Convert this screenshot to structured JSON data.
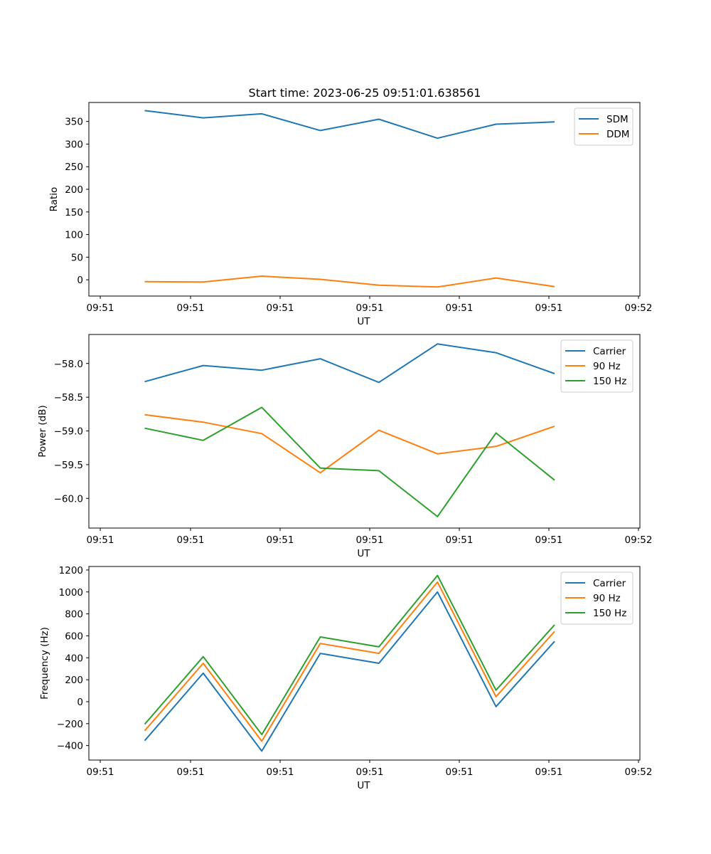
{
  "figure": {
    "title": "Start time: 2023-06-25 09:51:01.638561"
  },
  "chart_data": [
    {
      "type": "line",
      "title": "Start time: 2023-06-25 09:51:01.638561",
      "xlabel": "UT",
      "ylabel": "Ratio",
      "x_ticks": [
        "09:51",
        "09:51",
        "09:51",
        "09:51",
        "09:51",
        "09:51",
        "09:52"
      ],
      "y_ticks": [
        "0",
        "50",
        "100",
        "150",
        "200",
        "250",
        "300",
        "350"
      ],
      "ylim": [
        -36,
        392
      ],
      "x_index": [
        0,
        1,
        2,
        3,
        4,
        5,
        6,
        7
      ],
      "series": [
        {
          "name": "SDM",
          "color": "#1f77b4",
          "values": [
            374,
            358,
            367,
            330,
            355,
            313,
            344,
            349
          ]
        },
        {
          "name": "DDM",
          "color": "#ff7f0e",
          "values": [
            -4,
            -5,
            8,
            1,
            -12,
            -16,
            4,
            -15
          ]
        }
      ],
      "legend": "top-right",
      "grid": false
    },
    {
      "type": "line",
      "title": "",
      "xlabel": "UT",
      "ylabel": "Power (dB)",
      "x_ticks": [
        "09:51",
        "09:51",
        "09:51",
        "09:51",
        "09:51",
        "09:51",
        "09:52"
      ],
      "y_ticks": [
        "−60.0",
        "−59.5",
        "−59.0",
        "−58.5",
        "−58.0"
      ],
      "ylim": [
        -60.44,
        -57.57
      ],
      "x_index": [
        0,
        1,
        2,
        3,
        4,
        5,
        6,
        7
      ],
      "series": [
        {
          "name": "Carrier",
          "color": "#1f77b4",
          "values": [
            -58.27,
            -58.03,
            -58.1,
            -57.93,
            -58.28,
            -57.71,
            -57.84,
            -58.15
          ]
        },
        {
          "name": "90 Hz",
          "color": "#ff7f0e",
          "values": [
            -58.76,
            -58.87,
            -59.04,
            -59.62,
            -58.99,
            -59.34,
            -59.23,
            -58.93
          ]
        },
        {
          "name": "150 Hz",
          "color": "#2ca02c",
          "values": [
            -58.96,
            -59.14,
            -58.65,
            -59.55,
            -59.59,
            -60.27,
            -59.03,
            -59.73
          ]
        }
      ],
      "legend": "top-right",
      "grid": false
    },
    {
      "type": "line",
      "title": "",
      "xlabel": "UT",
      "ylabel": "Frequency (Hz)",
      "x_ticks": [
        "09:51",
        "09:51",
        "09:51",
        "09:51",
        "09:51",
        "09:51",
        "09:52"
      ],
      "y_ticks": [
        "−400",
        "−200",
        "0",
        "200",
        "400",
        "600",
        "800",
        "1000",
        "1200"
      ],
      "ylim": [
        -532,
        1232
      ],
      "x_index": [
        0,
        1,
        2,
        3,
        4,
        5,
        6,
        7
      ],
      "series": [
        {
          "name": "Carrier",
          "color": "#1f77b4",
          "values": [
            -355,
            260,
            -450,
            440,
            350,
            1000,
            -45,
            550
          ]
        },
        {
          "name": "90 Hz",
          "color": "#ff7f0e",
          "values": [
            -265,
            350,
            -360,
            530,
            440,
            1090,
            45,
            640
          ]
        },
        {
          "name": "150 Hz",
          "color": "#2ca02c",
          "values": [
            -205,
            410,
            -300,
            590,
            500,
            1150,
            105,
            700
          ]
        }
      ],
      "legend": "top-right",
      "grid": false
    }
  ]
}
